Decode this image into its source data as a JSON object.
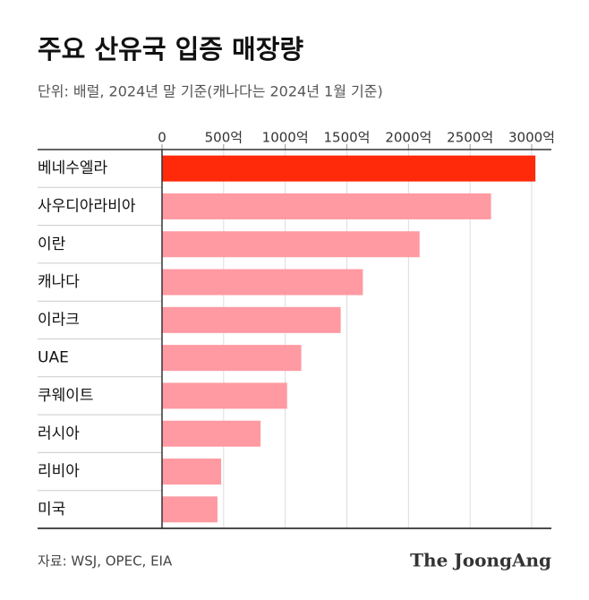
{
  "chart_data": {
    "type": "hbar",
    "title": "주요 산유국 입증 매장량",
    "subtitle": "단위: 배럴, 2024년 말 기준(캐나다는 2024년 1월 기준)",
    "categories": [
      "베네수엘라",
      "사우디아라비아",
      "이란",
      "캐나다",
      "이라크",
      "UAE",
      "쿠웨이트",
      "러시아",
      "리비아",
      "미국"
    ],
    "values": [
      3030,
      2670,
      2090,
      1630,
      1450,
      1130,
      1015,
      800,
      480,
      450
    ],
    "colors": [
      "#ff2a0a",
      "#ff9aa2",
      "#ff9aa2",
      "#ff9aa2",
      "#ff9aa2",
      "#ff9aa2",
      "#ff9aa2",
      "#ff9aa2",
      "#ff9aa2",
      "#ff9aa2"
    ],
    "xlim": [
      0,
      3000
    ],
    "xticks": [
      0,
      {
        "value": 500,
        "label": "500억"
      },
      {
        "value": 1000,
        "label": "1000억"
      },
      {
        "value": 1500,
        "label": "1500억"
      },
      {
        "value": 2000,
        "label": "2000억"
      },
      {
        "value": 2500,
        "label": "2500억"
      },
      {
        "value": 3000,
        "label": "3000억"
      }
    ],
    "grid": true,
    "source": "자료: WSJ, OPEC, EIA",
    "publisher": "The JoongAng"
  }
}
